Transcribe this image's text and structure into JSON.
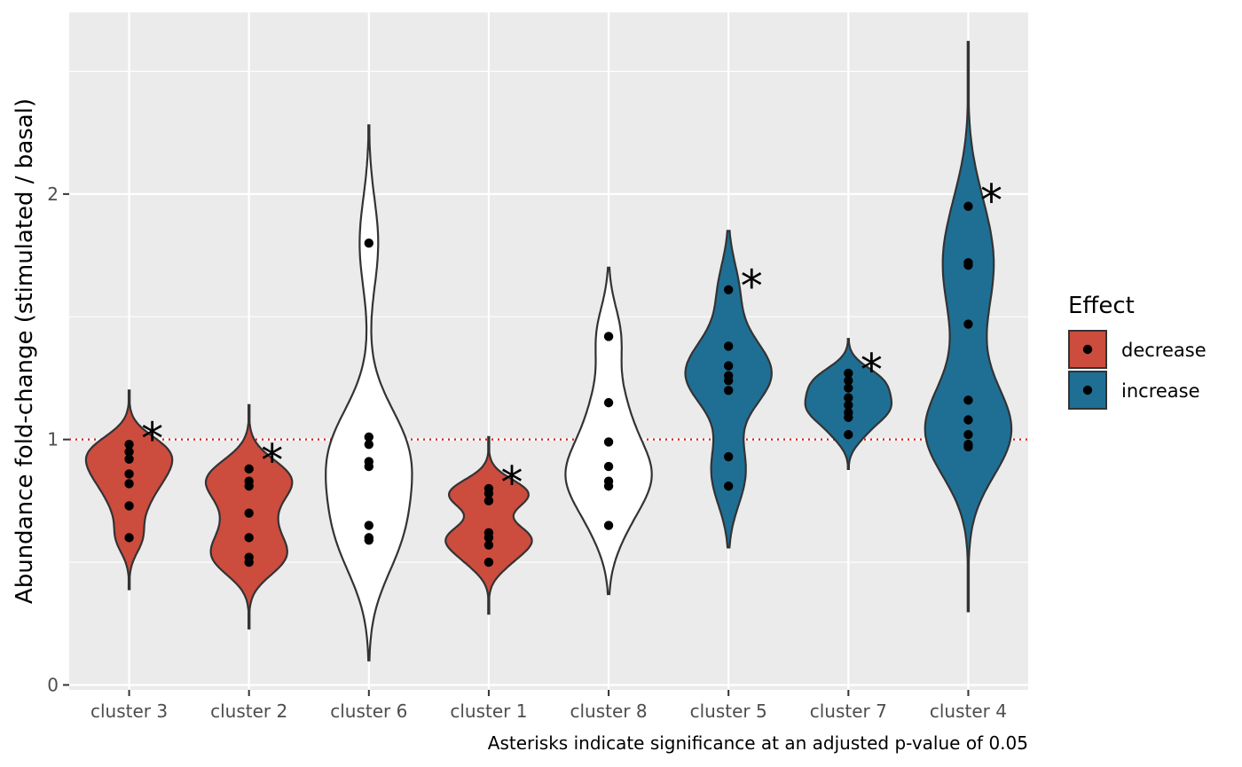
{
  "chart_data": {
    "type": "violin",
    "ylabel": "Abundance fold-change (stimulated / basal)",
    "caption": "Asterisks indicate significance at an adjusted p-value of 0.05",
    "ylim": [
      0,
      2.7
    ],
    "yticks": [
      0,
      1,
      2
    ],
    "reference_line": 1,
    "reference_line_style": "dotted",
    "reference_line_color": "#e41a1c",
    "grid": true,
    "panel_background": "#ebebeb",
    "legend": {
      "title": "Effect",
      "placement": "right",
      "entries": [
        {
          "label": "decrease",
          "color": "#cc4c3e"
        },
        {
          "label": "increase",
          "color": "#1f6f95"
        }
      ]
    },
    "significance_symbol": "*",
    "categories": [
      {
        "name": "cluster 3",
        "effect": "decrease",
        "significant": true,
        "points": [
          0.6,
          0.73,
          0.82,
          0.86,
          0.92,
          0.95,
          0.98
        ],
        "range": [
          0.39,
          1.2
        ],
        "star_y": 1.05
      },
      {
        "name": "cluster 2",
        "effect": "decrease",
        "significant": true,
        "points": [
          0.5,
          0.52,
          0.6,
          0.7,
          0.81,
          0.83,
          0.88
        ],
        "range": [
          0.23,
          1.14
        ],
        "star_y": 0.96
      },
      {
        "name": "cluster 6",
        "effect": "none",
        "significant": false,
        "points": [
          0.59,
          0.6,
          0.65,
          0.89,
          0.91,
          0.98,
          1.01,
          1.8
        ],
        "range": [
          0.1,
          2.28
        ],
        "star_y": null
      },
      {
        "name": "cluster 1",
        "effect": "decrease",
        "significant": true,
        "points": [
          0.5,
          0.57,
          0.6,
          0.62,
          0.75,
          0.78,
          0.8
        ],
        "range": [
          0.29,
          1.01
        ],
        "star_y": 0.87
      },
      {
        "name": "cluster 8",
        "effect": "none",
        "significant": false,
        "points": [
          0.65,
          0.81,
          0.83,
          0.89,
          0.99,
          1.15,
          1.42
        ],
        "range": [
          0.37,
          1.7
        ],
        "star_y": null
      },
      {
        "name": "cluster 5",
        "effect": "increase",
        "significant": true,
        "points": [
          0.81,
          0.93,
          1.2,
          1.24,
          1.26,
          1.3,
          1.38,
          1.61
        ],
        "range": [
          0.56,
          1.85
        ],
        "star_y": 1.67
      },
      {
        "name": "cluster 7",
        "effect": "increase",
        "significant": true,
        "points": [
          1.02,
          1.09,
          1.11,
          1.14,
          1.17,
          1.21,
          1.24,
          1.27
        ],
        "range": [
          0.88,
          1.41
        ],
        "star_y": 1.33
      },
      {
        "name": "cluster 4",
        "effect": "increase",
        "significant": true,
        "points": [
          0.97,
          0.98,
          1.02,
          1.08,
          1.16,
          1.47,
          1.71,
          1.72,
          1.95
        ],
        "range": [
          0.3,
          2.62
        ],
        "star_y": 2.02
      }
    ]
  }
}
